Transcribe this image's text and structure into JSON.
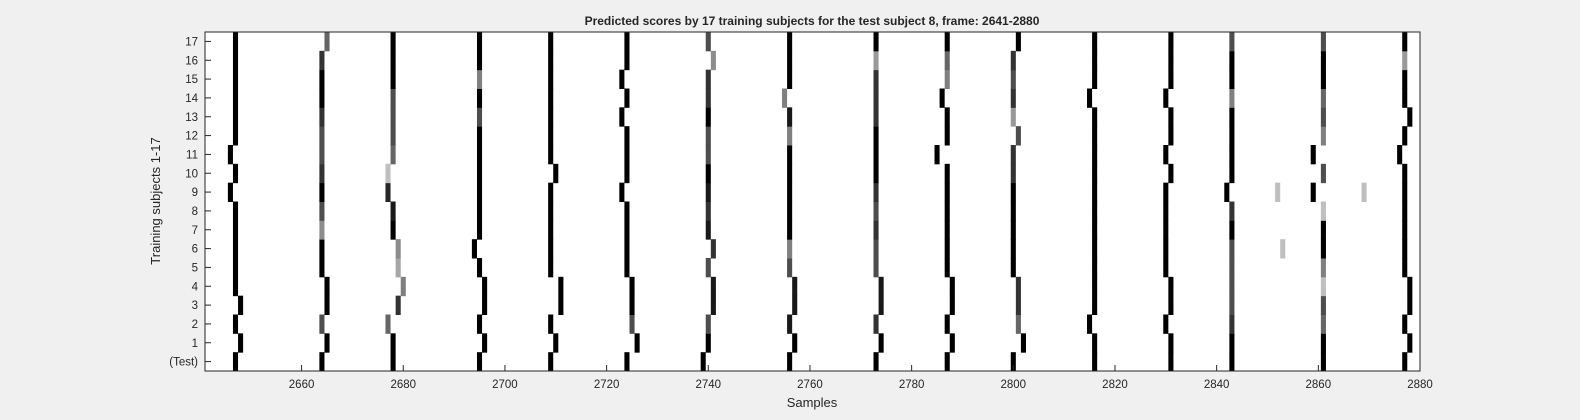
{
  "chart_data": {
    "type": "heatmap",
    "title": "Predicted scores by 17 training subjects for the test subject 8, frame: 2641-2880",
    "xlabel": "Samples",
    "ylabel": "Training subjects 1-17",
    "xlim": [
      2641,
      2880
    ],
    "x_ticks": [
      "2660",
      "2680",
      "2700",
      "2720",
      "2740",
      "2760",
      "2780",
      "2800",
      "2820",
      "2840",
      "2860",
      "2880"
    ],
    "y_tick_labels": [
      "(Test)",
      "1",
      "2",
      "3",
      "4",
      "5",
      "6",
      "7",
      "8",
      "9",
      "10",
      "11",
      "12",
      "13",
      "14",
      "15",
      "16",
      "17"
    ],
    "colormap": "gray-inverted",
    "background": "#ffffff",
    "rows": [
      {
        "label": "(Test)",
        "marks": [
          [
            2647,
            1
          ],
          [
            2664,
            1
          ],
          [
            2678,
            1
          ],
          [
            2695,
            1
          ],
          [
            2709,
            1
          ],
          [
            2724,
            1
          ],
          [
            2739,
            1
          ],
          [
            2756,
            1
          ],
          [
            2773,
            1
          ],
          [
            2787,
            1
          ],
          [
            2800,
            1
          ],
          [
            2816,
            1
          ],
          [
            2831,
            1
          ],
          [
            2843,
            1
          ],
          [
            2861,
            1
          ],
          [
            2877,
            1
          ]
        ]
      },
      {
        "label": "1",
        "marks": [
          [
            2648,
            1
          ],
          [
            2665,
            1
          ],
          [
            2678,
            1
          ],
          [
            2696,
            1
          ],
          [
            2710,
            1
          ],
          [
            2726,
            1
          ],
          [
            2740,
            1
          ],
          [
            2757,
            1
          ],
          [
            2774,
            1
          ],
          [
            2788,
            1
          ],
          [
            2802,
            1
          ],
          [
            2816,
            1
          ],
          [
            2831,
            1
          ],
          [
            2843,
            1
          ],
          [
            2861,
            1
          ],
          [
            2878,
            1
          ]
        ]
      },
      {
        "label": "2",
        "marks": [
          [
            2647,
            1
          ],
          [
            2664,
            0.7
          ],
          [
            2677,
            0.6
          ],
          [
            2695,
            1
          ],
          [
            2709,
            1
          ],
          [
            2725,
            0.7
          ],
          [
            2740,
            0.7
          ],
          [
            2756,
            0.9
          ],
          [
            2773,
            0.8
          ],
          [
            2787,
            1
          ],
          [
            2801,
            0.6
          ],
          [
            2815,
            1
          ],
          [
            2830,
            1
          ],
          [
            2843,
            0.8
          ],
          [
            2861,
            0.6
          ],
          [
            2877,
            1
          ]
        ]
      },
      {
        "label": "3",
        "marks": [
          [
            2648,
            1
          ],
          [
            2665,
            1
          ],
          [
            2679,
            0.8
          ],
          [
            2696,
            1
          ],
          [
            2711,
            1
          ],
          [
            2725,
            1
          ],
          [
            2741,
            0.9
          ],
          [
            2757,
            0.9
          ],
          [
            2774,
            0.9
          ],
          [
            2788,
            1
          ],
          [
            2801,
            0.8
          ],
          [
            2816,
            1
          ],
          [
            2831,
            1
          ],
          [
            2843,
            0.7
          ],
          [
            2861,
            0.7
          ],
          [
            2878,
            1
          ]
        ]
      },
      {
        "label": "4",
        "marks": [
          [
            2647,
            1
          ],
          [
            2665,
            1
          ],
          [
            2680,
            0.5
          ],
          [
            2696,
            1
          ],
          [
            2711,
            1
          ],
          [
            2725,
            1
          ],
          [
            2741,
            0.9
          ],
          [
            2757,
            0.9
          ],
          [
            2774,
            0.9
          ],
          [
            2788,
            1
          ],
          [
            2801,
            0.8
          ],
          [
            2816,
            1
          ],
          [
            2831,
            1
          ],
          [
            2843,
            0.7
          ],
          [
            2861,
            0.25
          ],
          [
            2878,
            1
          ]
        ]
      },
      {
        "label": "5",
        "marks": [
          [
            2647,
            1
          ],
          [
            2664,
            1
          ],
          [
            2679,
            0.35
          ],
          [
            2695,
            1
          ],
          [
            2709,
            1
          ],
          [
            2724,
            1
          ],
          [
            2740,
            0.7
          ],
          [
            2756,
            0.7
          ],
          [
            2773,
            0.7
          ],
          [
            2787,
            1
          ],
          [
            2800,
            1
          ],
          [
            2816,
            1
          ],
          [
            2830,
            1
          ],
          [
            2843,
            0.7
          ],
          [
            2861,
            0.5
          ],
          [
            2877,
            1
          ]
        ]
      },
      {
        "label": "6",
        "marks": [
          [
            2647,
            1
          ],
          [
            2664,
            1
          ],
          [
            2679,
            0.45
          ],
          [
            2694,
            1
          ],
          [
            2709,
            1
          ],
          [
            2724,
            1
          ],
          [
            2741,
            0.8
          ],
          [
            2756,
            0.5
          ],
          [
            2773,
            0.7
          ],
          [
            2787,
            1
          ],
          [
            2800,
            1
          ],
          [
            2816,
            1
          ],
          [
            2830,
            1
          ],
          [
            2843,
            0.7
          ],
          [
            2853,
            0.25
          ],
          [
            2861,
            1
          ],
          [
            2877,
            1
          ]
        ]
      },
      {
        "label": "7",
        "marks": [
          [
            2647,
            1
          ],
          [
            2664,
            0.45
          ],
          [
            2678,
            1
          ],
          [
            2695,
            1
          ],
          [
            2709,
            1
          ],
          [
            2724,
            1
          ],
          [
            2740,
            0.9
          ],
          [
            2756,
            1
          ],
          [
            2773,
            0.8
          ],
          [
            2787,
            1
          ],
          [
            2800,
            1
          ],
          [
            2816,
            1
          ],
          [
            2830,
            1
          ],
          [
            2843,
            1
          ],
          [
            2861,
            1
          ],
          [
            2877,
            1
          ]
        ]
      },
      {
        "label": "8",
        "marks": [
          [
            2647,
            1
          ],
          [
            2664,
            0.7
          ],
          [
            2678,
            0.9
          ],
          [
            2695,
            1
          ],
          [
            2709,
            1
          ],
          [
            2724,
            1
          ],
          [
            2740,
            0.8
          ],
          [
            2756,
            1
          ],
          [
            2773,
            0.7
          ],
          [
            2787,
            1
          ],
          [
            2800,
            1
          ],
          [
            2816,
            1
          ],
          [
            2830,
            1
          ],
          [
            2843,
            0.8
          ],
          [
            2861,
            0.25
          ],
          [
            2877,
            1
          ]
        ]
      },
      {
        "label": "9",
        "marks": [
          [
            2646,
            1
          ],
          [
            2664,
            1
          ],
          [
            2677,
            0.85
          ],
          [
            2695,
            1
          ],
          [
            2709,
            1
          ],
          [
            2723,
            1
          ],
          [
            2740,
            0.9
          ],
          [
            2756,
            1
          ],
          [
            2773,
            0.8
          ],
          [
            2787,
            1
          ],
          [
            2800,
            1
          ],
          [
            2816,
            1
          ],
          [
            2830,
            1
          ],
          [
            2842,
            1
          ],
          [
            2852,
            0.25
          ],
          [
            2859,
            1
          ],
          [
            2869,
            0.25
          ],
          [
            2877,
            1
          ]
        ]
      },
      {
        "label": "10",
        "marks": [
          [
            2647,
            1
          ],
          [
            2664,
            0.8
          ],
          [
            2677,
            0.25
          ],
          [
            2695,
            1
          ],
          [
            2710,
            1
          ],
          [
            2724,
            1
          ],
          [
            2740,
            1
          ],
          [
            2756,
            1
          ],
          [
            2773,
            1
          ],
          [
            2787,
            1
          ],
          [
            2800,
            0.8
          ],
          [
            2816,
            1
          ],
          [
            2831,
            1
          ],
          [
            2843,
            1
          ],
          [
            2861,
            0.7
          ],
          [
            2877,
            1
          ]
        ]
      },
      {
        "label": "11",
        "marks": [
          [
            2646,
            1
          ],
          [
            2664,
            0.7
          ],
          [
            2678,
            0.6
          ],
          [
            2695,
            1
          ],
          [
            2709,
            1
          ],
          [
            2724,
            1
          ],
          [
            2740,
            0.7
          ],
          [
            2756,
            1
          ],
          [
            2773,
            1
          ],
          [
            2785,
            1
          ],
          [
            2800,
            0.8
          ],
          [
            2816,
            1
          ],
          [
            2830,
            1
          ],
          [
            2843,
            1
          ],
          [
            2859,
            1
          ],
          [
            2876,
            1
          ]
        ]
      },
      {
        "label": "12",
        "marks": [
          [
            2647,
            1
          ],
          [
            2664,
            0.7
          ],
          [
            2678,
            0.7
          ],
          [
            2695,
            1
          ],
          [
            2709,
            1
          ],
          [
            2724,
            1
          ],
          [
            2740,
            0.7
          ],
          [
            2756,
            0.5
          ],
          [
            2773,
            1
          ],
          [
            2787,
            1
          ],
          [
            2801,
            0.7
          ],
          [
            2816,
            1
          ],
          [
            2831,
            1
          ],
          [
            2843,
            1
          ],
          [
            2861,
            0.5
          ],
          [
            2877,
            1
          ]
        ]
      },
      {
        "label": "13",
        "marks": [
          [
            2647,
            1
          ],
          [
            2664,
            0.8
          ],
          [
            2678,
            0.7
          ],
          [
            2695,
            0.7
          ],
          [
            2709,
            1
          ],
          [
            2723,
            1
          ],
          [
            2740,
            1
          ],
          [
            2756,
            0.9
          ],
          [
            2773,
            0.8
          ],
          [
            2787,
            1
          ],
          [
            2800,
            0.4
          ],
          [
            2816,
            1
          ],
          [
            2831,
            1
          ],
          [
            2843,
            1
          ],
          [
            2861,
            0.7
          ],
          [
            2878,
            1
          ]
        ]
      },
      {
        "label": "14",
        "marks": [
          [
            2647,
            1
          ],
          [
            2664,
            1
          ],
          [
            2678,
            0.7
          ],
          [
            2695,
            1
          ],
          [
            2709,
            1
          ],
          [
            2724,
            1
          ],
          [
            2740,
            0.8
          ],
          [
            2755,
            0.5
          ],
          [
            2773,
            0.8
          ],
          [
            2786,
            1
          ],
          [
            2800,
            0.8
          ],
          [
            2815,
            1
          ],
          [
            2830,
            1
          ],
          [
            2843,
            0.5
          ],
          [
            2861,
            0.6
          ],
          [
            2877,
            1
          ]
        ]
      },
      {
        "label": "15",
        "marks": [
          [
            2647,
            1
          ],
          [
            2664,
            1
          ],
          [
            2678,
            1
          ],
          [
            2695,
            0.5
          ],
          [
            2709,
            1
          ],
          [
            2723,
            1
          ],
          [
            2740,
            0.8
          ],
          [
            2756,
            1
          ],
          [
            2773,
            0.8
          ],
          [
            2787,
            0.5
          ],
          [
            2800,
            0.7
          ],
          [
            2816,
            1
          ],
          [
            2831,
            1
          ],
          [
            2843,
            1
          ],
          [
            2861,
            1
          ],
          [
            2877,
            1
          ]
        ]
      },
      {
        "label": "16",
        "marks": [
          [
            2647,
            1
          ],
          [
            2664,
            0.8
          ],
          [
            2678,
            1
          ],
          [
            2695,
            1
          ],
          [
            2709,
            1
          ],
          [
            2724,
            1
          ],
          [
            2741,
            0.45
          ],
          [
            2756,
            1
          ],
          [
            2773,
            0.4
          ],
          [
            2787,
            0.6
          ],
          [
            2800,
            0.8
          ],
          [
            2816,
            1
          ],
          [
            2831,
            1
          ],
          [
            2843,
            1
          ],
          [
            2861,
            1
          ],
          [
            2877,
            0.4
          ]
        ]
      },
      {
        "label": "17",
        "marks": [
          [
            2647,
            1
          ],
          [
            2665,
            0.6
          ],
          [
            2678,
            1
          ],
          [
            2695,
            1
          ],
          [
            2709,
            1
          ],
          [
            2724,
            1
          ],
          [
            2740,
            0.7
          ],
          [
            2756,
            1
          ],
          [
            2773,
            1
          ],
          [
            2787,
            1
          ],
          [
            2801,
            1
          ],
          [
            2816,
            1
          ],
          [
            2831,
            1
          ],
          [
            2843,
            0.7
          ],
          [
            2861,
            0.7
          ],
          [
            2877,
            1
          ]
        ]
      }
    ]
  }
}
